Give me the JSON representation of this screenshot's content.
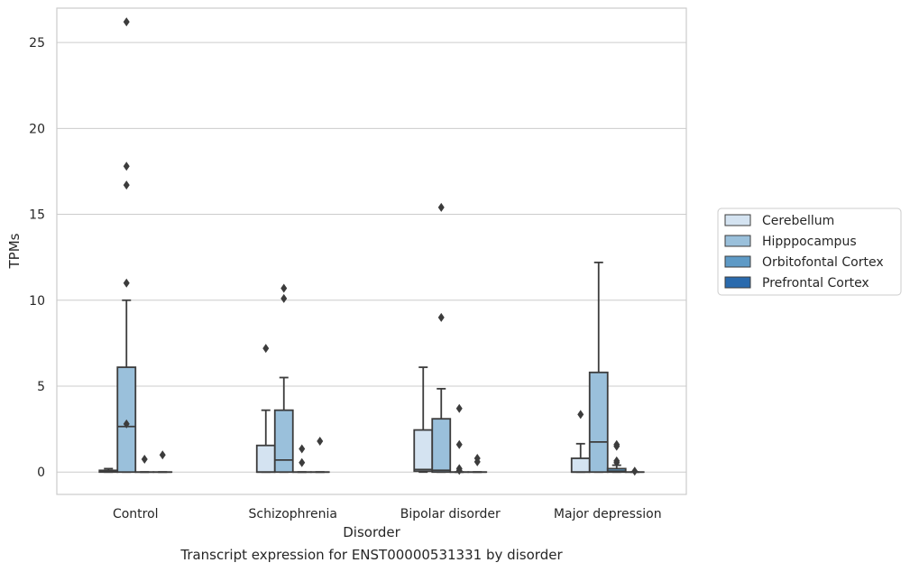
{
  "caption": "Transcript expression for ENST00000531331 by disorder",
  "chart_data": {
    "type": "box",
    "xlabel": "Disorder",
    "ylabel": "TPMs",
    "ylim": [
      -1.3,
      27.0
    ],
    "yticks": [
      0,
      5,
      10,
      15,
      20,
      25
    ],
    "grid": "y",
    "legend_position": "right",
    "categories": [
      "Control",
      "Schizophrenia",
      "Bipolar disorder",
      "Major depression"
    ],
    "series": [
      {
        "name": "Cerebellum",
        "color": "#d4e3f1",
        "boxes": [
          {
            "whislo": 0.0,
            "q1": 0.0,
            "med": 0.05,
            "q3": 0.1,
            "whishi": 0.2,
            "fliers": []
          },
          {
            "whislo": 0.0,
            "q1": 0.0,
            "med": 0.0,
            "q3": 1.55,
            "whishi": 3.6,
            "fliers": [
              7.2
            ]
          },
          {
            "whislo": 0.0,
            "q1": 0.05,
            "med": 0.15,
            "q3": 2.45,
            "whishi": 6.1,
            "fliers": []
          },
          {
            "whislo": 0.0,
            "q1": 0.0,
            "med": 0.0,
            "q3": 0.8,
            "whishi": 1.65,
            "fliers": [
              3.35
            ]
          }
        ]
      },
      {
        "name": "Hipppocampus",
        "color": "#9ac0db",
        "boxes": [
          {
            "whislo": 0.0,
            "q1": 0.0,
            "med": 2.65,
            "q3": 6.1,
            "whishi": 10.0,
            "fliers": [
              2.8,
              11.0,
              16.7,
              17.8,
              26.2
            ]
          },
          {
            "whislo": 0.0,
            "q1": 0.0,
            "med": 0.7,
            "q3": 3.6,
            "whishi": 5.5,
            "fliers": [
              10.1,
              10.7
            ]
          },
          {
            "whislo": 0.0,
            "q1": 0.0,
            "med": 0.1,
            "q3": 3.1,
            "whishi": 4.85,
            "fliers": [
              9.0,
              15.4
            ]
          },
          {
            "whislo": 0.0,
            "q1": 0.0,
            "med": 1.75,
            "q3": 5.8,
            "whishi": 12.2,
            "fliers": []
          }
        ]
      },
      {
        "name": "Orbitofontal Cortex",
        "color": "#5e9ac6",
        "boxes": [
          {
            "whislo": 0.0,
            "q1": 0.0,
            "med": 0.0,
            "q3": 0.0,
            "whishi": 0.0,
            "fliers": [
              0.75
            ]
          },
          {
            "whislo": 0.0,
            "q1": 0.0,
            "med": 0.0,
            "q3": 0.0,
            "whishi": 0.0,
            "fliers": [
              0.55,
              1.35
            ]
          },
          {
            "whislo": 0.0,
            "q1": 0.0,
            "med": 0.0,
            "q3": 0.0,
            "whishi": 0.0,
            "fliers": [
              0.1,
              0.2,
              1.6,
              3.7
            ]
          },
          {
            "whislo": 0.0,
            "q1": 0.0,
            "med": 0.05,
            "q3": 0.2,
            "whishi": 0.4,
            "fliers": [
              0.55,
              0.65,
              1.5,
              1.6
            ]
          }
        ]
      },
      {
        "name": "Prefrontal Cortex",
        "color": "#2a6aad",
        "boxes": [
          {
            "whislo": 0.0,
            "q1": 0.0,
            "med": 0.0,
            "q3": 0.0,
            "whishi": 0.0,
            "fliers": [
              1.0
            ]
          },
          {
            "whislo": 0.0,
            "q1": 0.0,
            "med": 0.0,
            "q3": 0.0,
            "whishi": 0.0,
            "fliers": [
              1.8
            ]
          },
          {
            "whislo": 0.0,
            "q1": 0.0,
            "med": 0.0,
            "q3": 0.0,
            "whishi": 0.0,
            "fliers": [
              0.6,
              0.8
            ]
          },
          {
            "whislo": 0.0,
            "q1": 0.0,
            "med": 0.0,
            "q3": 0.0,
            "whishi": 0.0,
            "fliers": [
              0.05
            ]
          }
        ]
      }
    ]
  }
}
